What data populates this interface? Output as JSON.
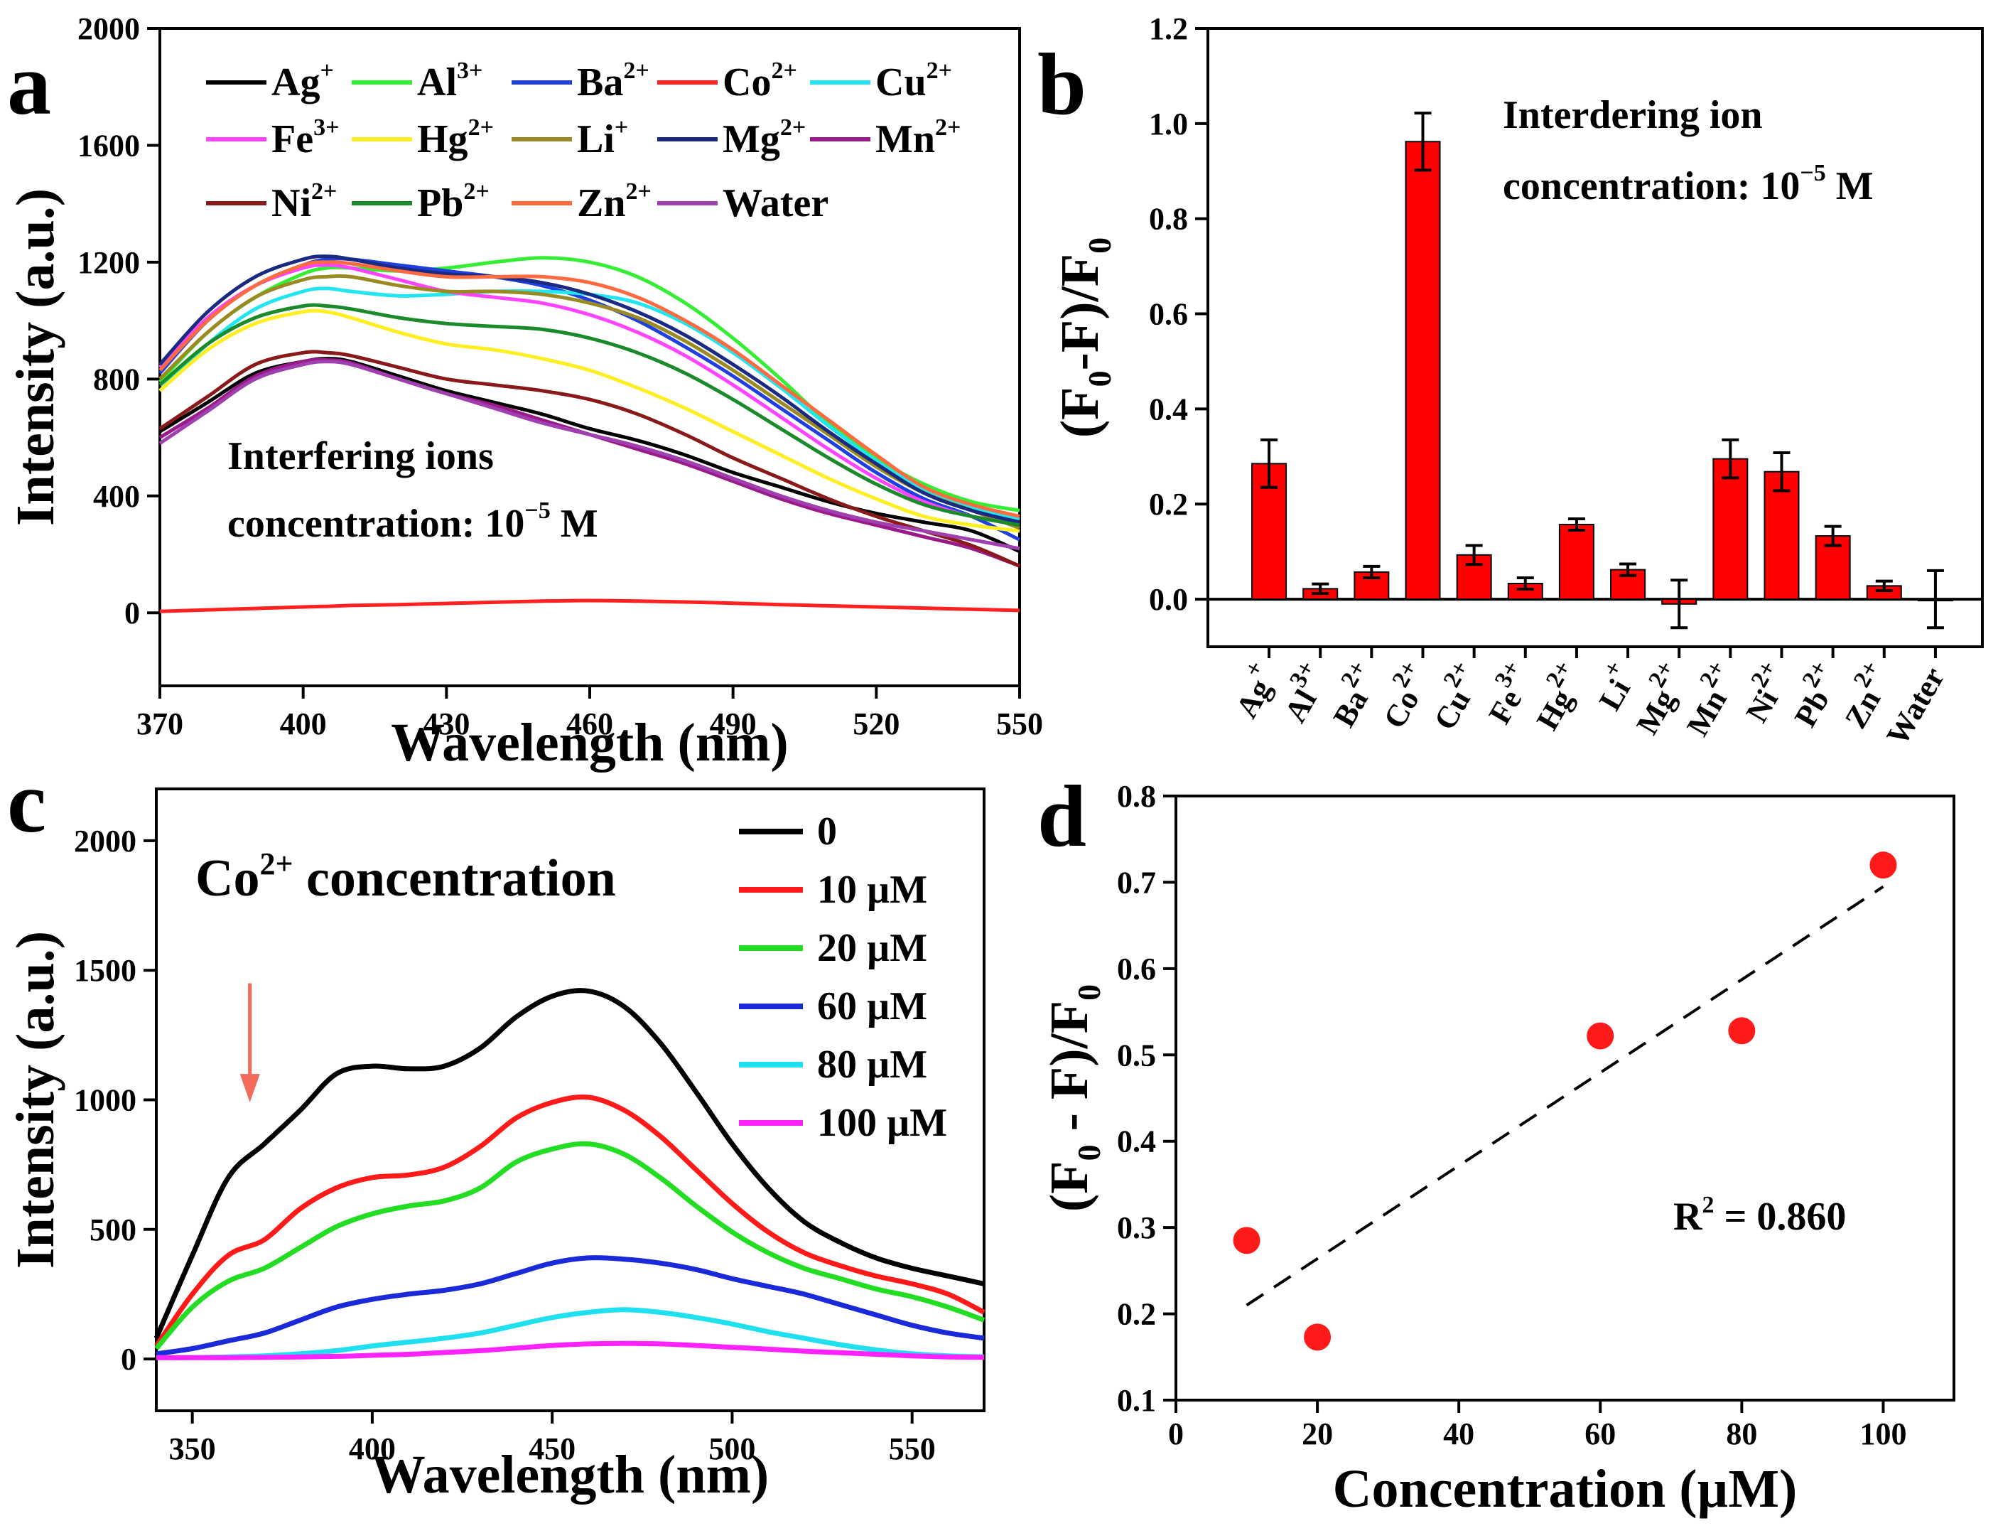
{
  "chart_data": [
    {
      "panel": "a",
      "type": "line",
      "xlabel": "Wavelength (nm)",
      "ylabel": "Intensity (a.u.)",
      "xlim": [
        370,
        550
      ],
      "ylim": [
        -250,
        2000
      ],
      "xticks": [
        370,
        400,
        430,
        460,
        490,
        520,
        550
      ],
      "yticks": [
        0,
        400,
        800,
        1200,
        1600,
        2000
      ],
      "annotation": [
        "Interfering ions",
        "concentration: 10",
        "−5",
        " M"
      ],
      "x": [
        370,
        380,
        390,
        400,
        405,
        410,
        420,
        430,
        440,
        450,
        460,
        470,
        480,
        490,
        500,
        510,
        520,
        530,
        540,
        550
      ],
      "series": [
        {
          "name": "Ag",
          "charge": "+",
          "color": "#000000",
          "values": [
            620,
            720,
            820,
            860,
            870,
            860,
            810,
            760,
            720,
            680,
            630,
            590,
            540,
            480,
            430,
            380,
            340,
            310,
            280,
            210
          ]
        },
        {
          "name": "Al",
          "charge": "3+",
          "color": "#33ee33",
          "values": [
            790,
            960,
            1080,
            1160,
            1180,
            1180,
            1170,
            1180,
            1200,
            1215,
            1200,
            1150,
            1060,
            940,
            800,
            650,
            530,
            440,
            380,
            350
          ]
        },
        {
          "name": "Ba",
          "charge": "2+",
          "color": "#1f3fe0",
          "values": [
            820,
            1000,
            1120,
            1190,
            1210,
            1210,
            1190,
            1170,
            1150,
            1120,
            1070,
            1000,
            910,
            810,
            700,
            590,
            480,
            390,
            330,
            250
          ]
        },
        {
          "name": "Co",
          "charge": "2+",
          "color": "#ff2020",
          "values": [
            5,
            10,
            15,
            20,
            22,
            25,
            28,
            32,
            36,
            40,
            42,
            40,
            37,
            33,
            28,
            24,
            20,
            16,
            12,
            8
          ]
        },
        {
          "name": "Cu",
          "charge": "2+",
          "color": "#22e5f0",
          "values": [
            760,
            920,
            1040,
            1100,
            1110,
            1100,
            1085,
            1090,
            1100,
            1100,
            1090,
            1060,
            990,
            890,
            770,
            640,
            520,
            420,
            360,
            320
          ]
        },
        {
          "name": "Fe",
          "charge": "3+",
          "color": "#ff44ff",
          "values": [
            840,
            1010,
            1120,
            1180,
            1190,
            1180,
            1140,
            1100,
            1080,
            1060,
            1020,
            960,
            880,
            780,
            670,
            560,
            460,
            380,
            330,
            310
          ]
        },
        {
          "name": "Hg",
          "charge": "2+",
          "color": "#ffee22",
          "values": [
            760,
            900,
            990,
            1030,
            1030,
            1010,
            960,
            920,
            900,
            870,
            830,
            770,
            700,
            620,
            540,
            460,
            390,
            330,
            300,
            280
          ]
        },
        {
          "name": "Li",
          "charge": "+",
          "color": "#9a8a22",
          "values": [
            800,
            960,
            1080,
            1140,
            1150,
            1150,
            1120,
            1100,
            1100,
            1090,
            1060,
            1010,
            930,
            830,
            720,
            610,
            500,
            410,
            350,
            290
          ]
        },
        {
          "name": "Mg",
          "charge": "2+",
          "color": "#1a2a80",
          "values": [
            850,
            1030,
            1150,
            1210,
            1220,
            1210,
            1180,
            1160,
            1150,
            1130,
            1090,
            1030,
            950,
            850,
            740,
            620,
            510,
            410,
            350,
            310
          ]
        },
        {
          "name": "Mn",
          "charge": "2+",
          "color": "#9a1a8a",
          "values": [
            600,
            700,
            810,
            860,
            865,
            855,
            800,
            750,
            710,
            660,
            610,
            560,
            510,
            450,
            390,
            340,
            300,
            260,
            220,
            160
          ]
        },
        {
          "name": "Ni",
          "charge": "2+",
          "color": "#8a1a1a",
          "values": [
            630,
            740,
            850,
            890,
            890,
            880,
            840,
            800,
            780,
            760,
            730,
            680,
            610,
            530,
            460,
            390,
            330,
            280,
            230,
            160
          ]
        },
        {
          "name": "Pb",
          "charge": "2+",
          "color": "#1a8a2a",
          "values": [
            780,
            920,
            1010,
            1050,
            1050,
            1040,
            1010,
            990,
            980,
            970,
            940,
            890,
            820,
            730,
            630,
            530,
            440,
            370,
            330,
            300
          ]
        },
        {
          "name": "Zn",
          "charge": "2+",
          "color": "#ff6a40",
          "values": [
            830,
            1000,
            1120,
            1190,
            1200,
            1195,
            1170,
            1150,
            1150,
            1150,
            1130,
            1080,
            1000,
            900,
            780,
            660,
            540,
            430,
            370,
            330
          ]
        },
        {
          "name": "Water",
          "charge": "",
          "color": "#a040b0",
          "values": [
            580,
            690,
            800,
            850,
            860,
            850,
            800,
            750,
            700,
            650,
            610,
            570,
            520,
            460,
            400,
            350,
            310,
            280,
            250,
            220
          ]
        }
      ]
    },
    {
      "panel": "b",
      "type": "bar",
      "ylabel": "(F0-F)/F0",
      "ylim": [
        -0.1,
        1.2
      ],
      "yticks": [
        0.0,
        0.2,
        0.4,
        0.6,
        0.8,
        1.0,
        1.2
      ],
      "annotation": [
        "Interdering ion",
        "concentration: 10",
        "−5",
        " M"
      ],
      "bar_color": "#ff0000",
      "categories": [
        {
          "name": "Ag",
          "charge": "+"
        },
        {
          "name": "Al",
          "charge": "3+"
        },
        {
          "name": "Ba",
          "charge": "2+"
        },
        {
          "name": "Co",
          "charge": "2+"
        },
        {
          "name": "Cu",
          "charge": "2+"
        },
        {
          "name": "Fe",
          "charge": "3+"
        },
        {
          "name": "Hg",
          "charge": "2+"
        },
        {
          "name": "Li",
          "charge": "+"
        },
        {
          "name": "Mg",
          "charge": "2+"
        },
        {
          "name": "Mn",
          "charge": "2+"
        },
        {
          "name": "Ni",
          "charge": "2+"
        },
        {
          "name": "Pb",
          "charge": "2+"
        },
        {
          "name": "Zn",
          "charge": "2+"
        },
        {
          "name": "Water",
          "charge": ""
        }
      ],
      "values": [
        0.285,
        0.022,
        0.057,
        0.962,
        0.093,
        0.033,
        0.157,
        0.062,
        -0.01,
        0.295,
        0.268,
        0.133,
        0.028,
        0.0
      ],
      "errors": [
        0.05,
        0.01,
        0.012,
        0.06,
        0.02,
        0.012,
        0.012,
        0.012,
        0.05,
        0.04,
        0.04,
        0.02,
        0.01,
        0.06
      ]
    },
    {
      "panel": "c",
      "type": "line",
      "xlabel": "Wavelength (nm)",
      "ylabel": "Intensity (a.u.)",
      "xlim": [
        340,
        570
      ],
      "ylim": [
        -200,
        2200
      ],
      "xticks": [
        350,
        400,
        450,
        500,
        550
      ],
      "yticks": [
        0,
        500,
        1000,
        1500,
        2000
      ],
      "annotation_main": "Co",
      "annotation_sup": "2+",
      "annotation_rest": " concentration",
      "x": [
        340,
        350,
        360,
        370,
        380,
        390,
        400,
        410,
        420,
        430,
        440,
        450,
        460,
        470,
        480,
        490,
        500,
        510,
        520,
        530,
        540,
        550,
        560,
        570
      ],
      "series": [
        {
          "name": "0",
          "color": "#000000",
          "values": [
            80,
            400,
            700,
            830,
            960,
            1100,
            1130,
            1120,
            1130,
            1200,
            1320,
            1400,
            1420,
            1360,
            1220,
            1030,
            830,
            660,
            530,
            450,
            390,
            350,
            320,
            290
          ]
        },
        {
          "name": "10 µM",
          "color": "#ff1a1a",
          "values": [
            50,
            250,
            400,
            460,
            580,
            660,
            700,
            710,
            740,
            820,
            930,
            990,
            1010,
            960,
            860,
            730,
            600,
            490,
            410,
            360,
            320,
            290,
            250,
            180
          ]
        },
        {
          "name": "20 µM",
          "color": "#22dd22",
          "values": [
            40,
            200,
            300,
            350,
            430,
            510,
            560,
            590,
            610,
            660,
            760,
            810,
            830,
            790,
            700,
            590,
            490,
            410,
            350,
            310,
            270,
            240,
            200,
            150
          ]
        },
        {
          "name": "60 µM",
          "color": "#1a2ad8",
          "values": [
            20,
            40,
            70,
            100,
            150,
            200,
            230,
            250,
            265,
            290,
            330,
            370,
            390,
            385,
            370,
            345,
            310,
            280,
            250,
            210,
            170,
            130,
            100,
            80
          ]
        },
        {
          "name": "80 µM",
          "color": "#20e0f0",
          "values": [
            5,
            5,
            8,
            12,
            20,
            32,
            50,
            65,
            80,
            100,
            130,
            160,
            180,
            190,
            180,
            160,
            135,
            105,
            80,
            55,
            35,
            20,
            12,
            8
          ]
        },
        {
          "name": "100 µM",
          "color": "#ff22ff",
          "values": [
            5,
            5,
            5,
            6,
            8,
            10,
            14,
            18,
            25,
            32,
            42,
            52,
            58,
            60,
            58,
            52,
            45,
            38,
            30,
            24,
            18,
            12,
            8,
            6
          ]
        }
      ],
      "arrow_color": "#f26a5a"
    },
    {
      "panel": "d",
      "type": "scatter",
      "xlabel": "Concentration (µM)",
      "ylabel": "(F0 - F)/F0",
      "xlim": [
        0,
        110
      ],
      "ylim": [
        0.1,
        0.8
      ],
      "xticks": [
        0,
        20,
        40,
        60,
        80,
        100
      ],
      "yticks": [
        0.1,
        0.2,
        0.3,
        0.4,
        0.5,
        0.6,
        0.7,
        0.8
      ],
      "x": [
        10,
        20,
        60,
        80,
        100
      ],
      "y": [
        0.285,
        0.173,
        0.522,
        0.528,
        0.72
      ],
      "point_color": "#ff1a1a",
      "fit": {
        "x": [
          10,
          100
        ],
        "y": [
          0.21,
          0.695
        ]
      },
      "r2_label": "R",
      "r2_sup": "2",
      "r2_value": " = 0.860"
    }
  ],
  "panel_letters": {
    "a": "a",
    "b": "b",
    "c": "c",
    "d": "d"
  }
}
